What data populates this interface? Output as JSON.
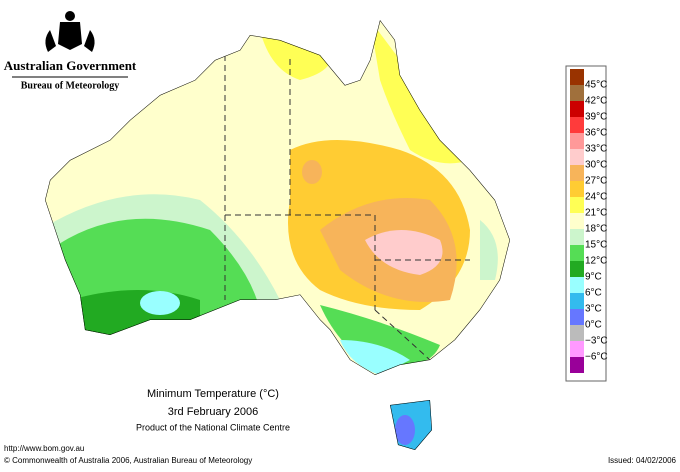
{
  "header": {
    "title": "Australian Government",
    "subtitle": "Bureau of Meteorology"
  },
  "map": {
    "title": "Minimum Temperature (°C)",
    "date": "3rd February 2006",
    "product": "Product of the National Climate Centre"
  },
  "legend": {
    "items": [
      {
        "label": "45°C",
        "color": "#993300"
      },
      {
        "label": "42°C",
        "color": "#a0703c"
      },
      {
        "label": "39°C",
        "color": "#cc0000"
      },
      {
        "label": "36°C",
        "color": "#ff3b3b"
      },
      {
        "label": "33°C",
        "color": "#ff9999"
      },
      {
        "label": "30°C",
        "color": "#ffcccc"
      },
      {
        "label": "27°C",
        "color": "#f7b45a"
      },
      {
        "label": "24°C",
        "color": "#ffcc33"
      },
      {
        "label": "21°C",
        "color": "#ffff55"
      },
      {
        "label": "18°C",
        "color": "#ffffcc"
      },
      {
        "label": "15°C",
        "color": "#ccf5cc"
      },
      {
        "label": "12°C",
        "color": "#55dd55"
      },
      {
        "label": "9°C",
        "color": "#22aa22"
      },
      {
        "label": "6°C",
        "color": "#99ffff"
      },
      {
        "label": "3°C",
        "color": "#33bbee"
      },
      {
        "label": "0°C",
        "color": "#6677ff"
      },
      {
        "label": "−3°C",
        "color": "#bbbbbb"
      },
      {
        "label": "−6°C",
        "color": "#ff99ff"
      }
    ],
    "bottom_color": "#990099"
  },
  "footer": {
    "url": "http://www.bom.gov.au",
    "copyright": "© Commonwealth of Australia 2006, Australian Bureau of Meteorology",
    "issued": "Issued: 04/02/2006"
  }
}
